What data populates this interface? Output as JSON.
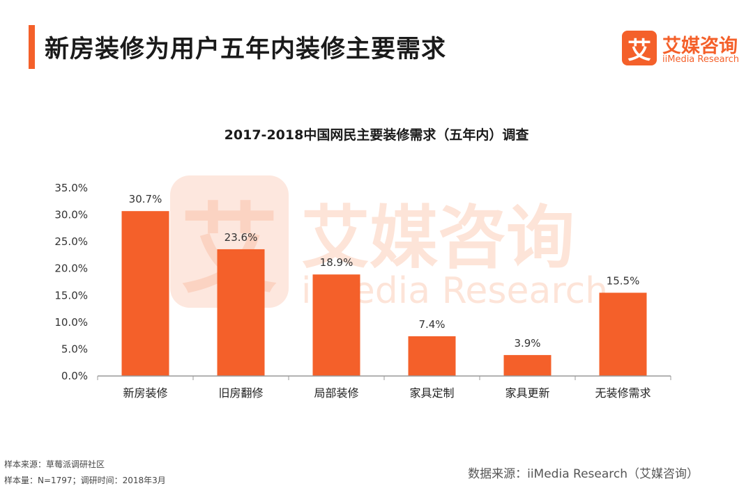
{
  "header": {
    "title": "新房装修为用户五年内装修主要需求"
  },
  "logo": {
    "mark": "艾",
    "name_cn": "艾媒咨询",
    "name_en": "iiMedia Research"
  },
  "watermark": {
    "mark": "艾",
    "name_cn": "艾媒咨询",
    "name_en": "iiMedia Research"
  },
  "chart_data": {
    "type": "bar",
    "title": "2017-2018中国网民主要装修需求（五年内）调查",
    "categories": [
      "新房装修",
      "旧房翻修",
      "局部装修",
      "家具定制",
      "家具更新",
      "无装修需求"
    ],
    "values": [
      30.7,
      23.6,
      18.9,
      7.4,
      3.9,
      15.5
    ],
    "value_labels": [
      "30.7%",
      "23.6%",
      "18.9%",
      "7.4%",
      "3.9%",
      "15.5%"
    ],
    "ylim": [
      0,
      35
    ],
    "yticks": [
      "0.0%",
      "5.0%",
      "10.0%",
      "15.0%",
      "20.0%",
      "25.0%",
      "30.0%",
      "35.0%"
    ],
    "grid": false,
    "bar_color": "#f4602a"
  },
  "footer": {
    "sample_source": "样本来源：草莓派调研社区",
    "sample_size": "样本量：N=1797；调研时间：2018年3月",
    "data_source": "数据来源：iiMedia Research（艾媒咨询）"
  },
  "colors": {
    "accent": "#f4602a",
    "watermark": "#fde4d8"
  }
}
